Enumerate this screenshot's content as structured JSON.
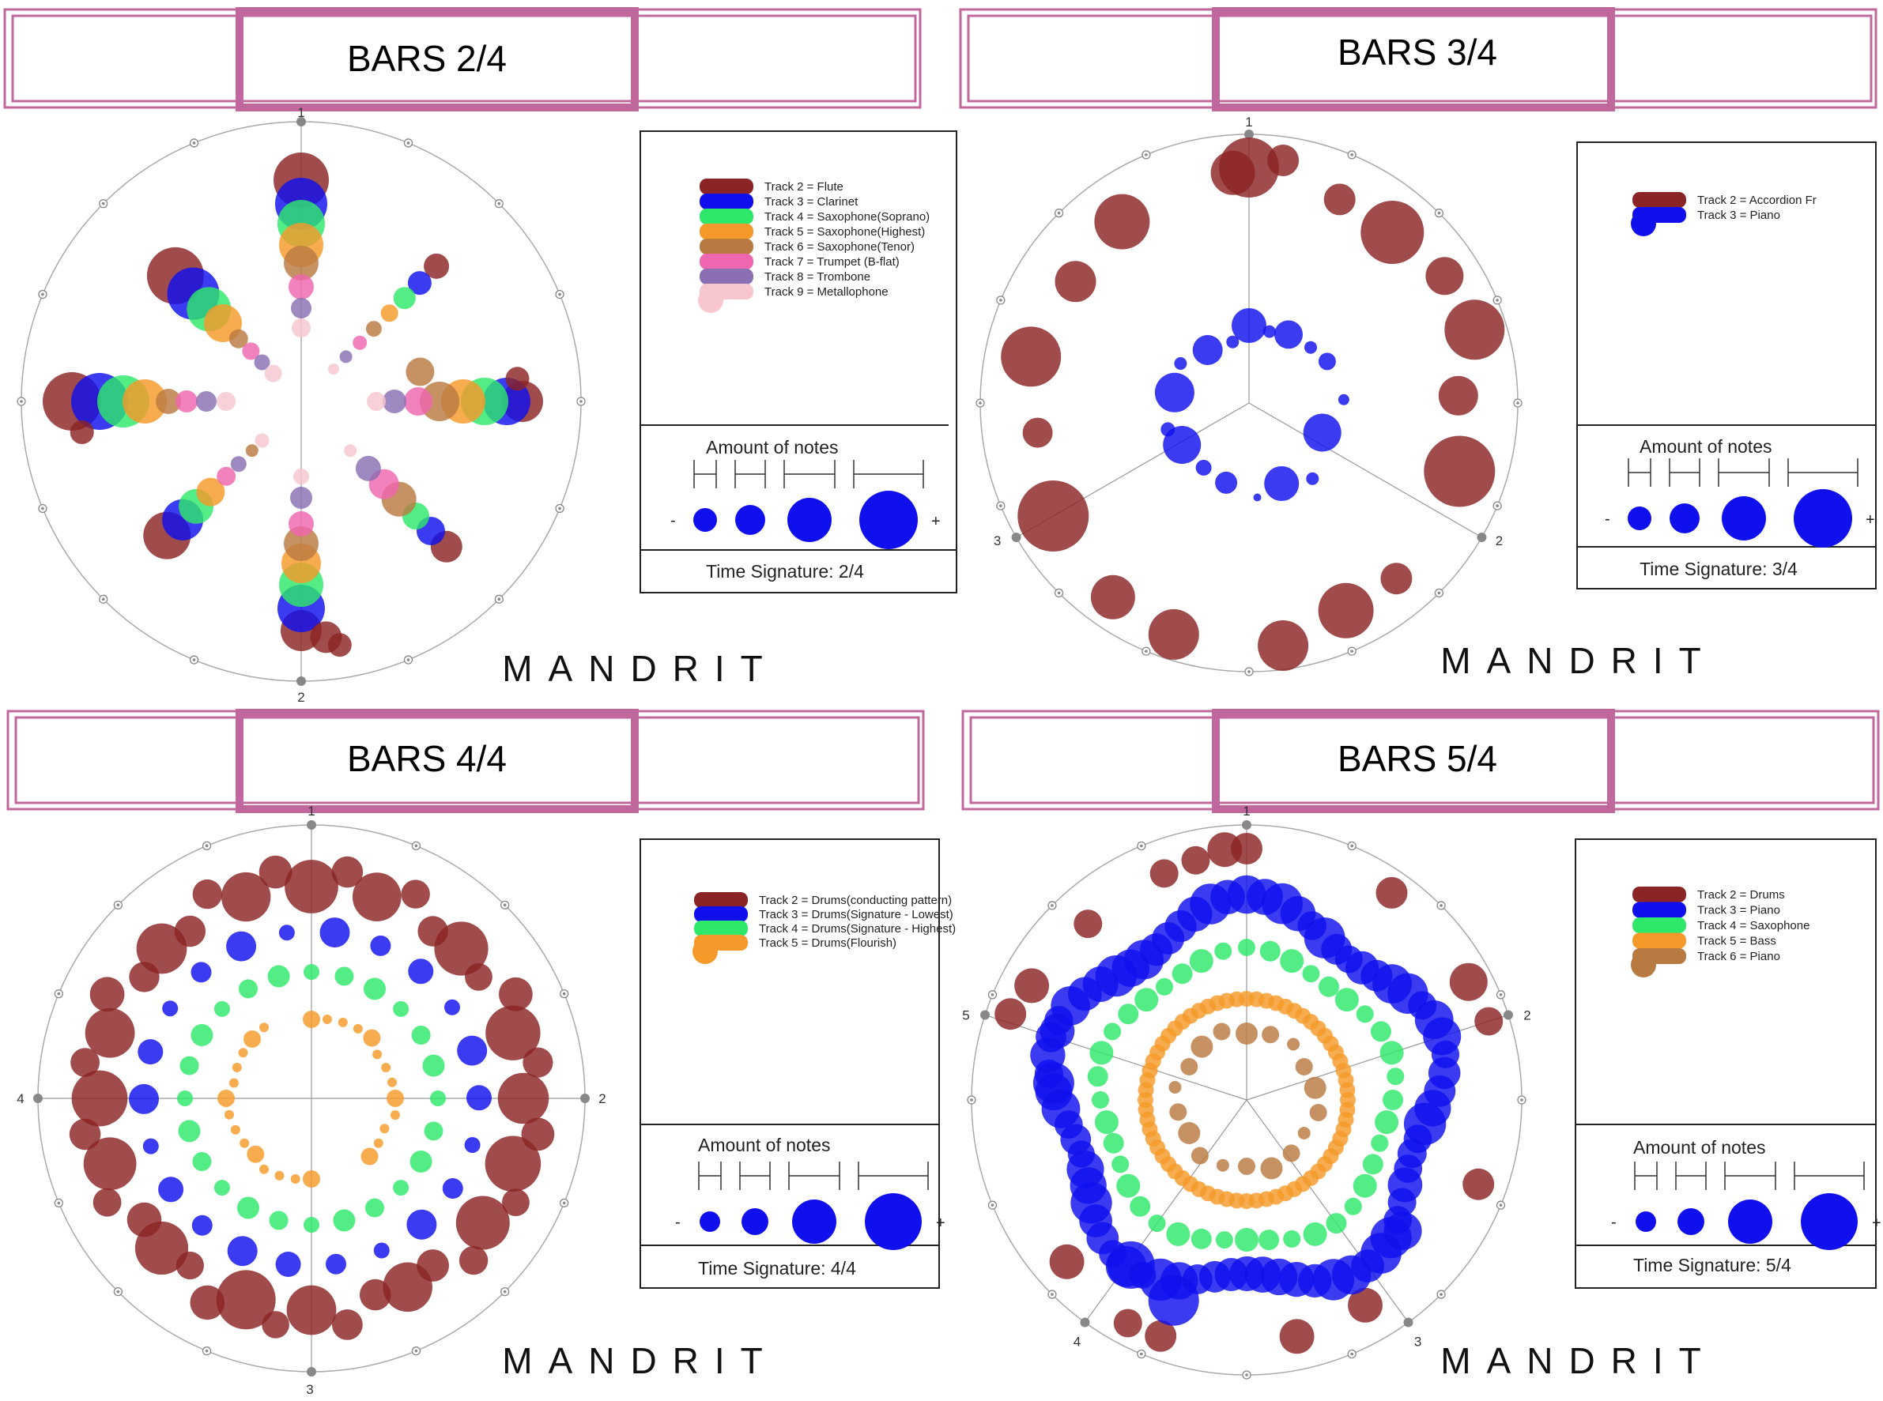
{
  "colors": {
    "frame": "#c0679e",
    "maroon": "#8b2525",
    "blue": "#1010ee",
    "green": "#2ee86a",
    "orange": "#f59a2a",
    "brown": "#b97a42",
    "pink": "#ef66b0",
    "purple": "#8a6fb3",
    "lightpink": "#f7c6cf",
    "axis": "#999999"
  },
  "panels": [
    {
      "title": "BARS 2/4",
      "legend": [
        "Track 2 = Flute",
        "Track 3 = Clarinet",
        "Track 4 = Saxophone(Soprano)",
        "Track 5 = Saxophone(Highest)",
        "Track 6 = Saxophone(Tenor)",
        "Track 7 = Trumpet (B-flat)",
        "Track 8 = Trombone",
        "Track 9 = Metallophone"
      ],
      "legend_colors": [
        "maroon",
        "blue",
        "green",
        "orange",
        "brown",
        "pink",
        "purple",
        "lightpink"
      ],
      "amount_label": "Amount of notes",
      "minus": "-",
      "plus": "+",
      "time_signature": "Time Signature: 2/4",
      "brand": "MANDRIT",
      "beat_labels": [
        "1",
        "2"
      ]
    },
    {
      "title": "BARS 3/4",
      "legend": [
        "Track 2 = Accordion Fr",
        "Track 3 = Piano"
      ],
      "legend_colors": [
        "maroon",
        "blue"
      ],
      "amount_label": "Amount of notes",
      "minus": "-",
      "plus": "+",
      "time_signature": "Time Signature: 3/4",
      "brand": "MANDRIT",
      "beat_labels": [
        "1",
        "2",
        "3"
      ]
    },
    {
      "title": "BARS 4/4",
      "legend": [
        "Track 2 = Drums(conducting pattern)",
        "Track 3 = Drums(Signature - Lowest)",
        "Track 4 = Drums(Signature - Highest)",
        "Track 5 = Drums(Flourish)"
      ],
      "legend_colors": [
        "maroon",
        "blue",
        "green",
        "orange"
      ],
      "amount_label": "Amount of notes",
      "minus": "-",
      "plus": "+",
      "time_signature": "Time Signature: 4/4",
      "brand": "MANDRIT",
      "beat_labels": [
        "1",
        "2",
        "3",
        "4"
      ]
    },
    {
      "title": "BARS 5/4",
      "legend": [
        "Track 2 = Drums",
        "Track 3 = Piano",
        "Track 4 = Saxophone",
        "Track 5 = Bass",
        "Track 6 = Piano"
      ],
      "legend_colors": [
        "maroon",
        "blue",
        "green",
        "orange",
        "brown"
      ],
      "amount_label": "Amount of notes",
      "minus": "-",
      "plus": "+",
      "time_signature": "Time Signature: 5/4",
      "brand": "MANDRIT",
      "beat_labels": [
        "1",
        "2",
        "3",
        "4",
        "5"
      ]
    }
  ]
}
